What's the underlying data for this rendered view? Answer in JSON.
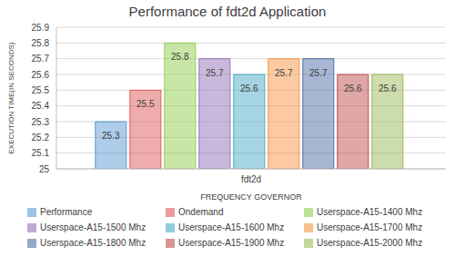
{
  "chart_data": {
    "type": "bar",
    "title": "Performance of fdt2d Application",
    "x_label": "FREQUENCY GOVERNOR",
    "y_label": "EXECUTION TIME(IN SECONDS)",
    "categories": [
      "fdt2d"
    ],
    "series": [
      {
        "name": "Performance",
        "color": "#5b9bd5",
        "values": [
          25.3
        ]
      },
      {
        "name": "Ondemand",
        "color": "#e05a5a",
        "values": [
          25.5
        ]
      },
      {
        "name": "Userspace-A15-1400 Mhz",
        "color": "#92d050",
        "values": [
          25.8
        ]
      },
      {
        "name": "Userspace-A15-1500 Mhz",
        "color": "#9673b9",
        "values": [
          25.7
        ]
      },
      {
        "name": "Userspace-A15-1600 Mhz",
        "color": "#4bacc6",
        "values": [
          25.6
        ]
      },
      {
        "name": "Userspace-A15-1700 Mhz",
        "color": "#f79646",
        "values": [
          25.7
        ]
      },
      {
        "name": "Userspace-A15-1800 Mhz",
        "color": "#4f6fa8",
        "values": [
          25.7
        ]
      },
      {
        "name": "Userspace-A15-1900 Mhz",
        "color": "#c0504d",
        "values": [
          25.6
        ]
      },
      {
        "name": "Userspace-A15-2000 Mhz",
        "color": "#9bbb59",
        "values": [
          25.6
        ]
      }
    ],
    "ylim": [
      25,
      25.9
    ],
    "yticks": [
      25,
      25.1,
      25.2,
      25.3,
      25.4,
      25.5,
      25.6,
      25.7,
      25.8,
      25.9
    ],
    "grid": true,
    "data_labels": true,
    "legend": "bottom"
  }
}
